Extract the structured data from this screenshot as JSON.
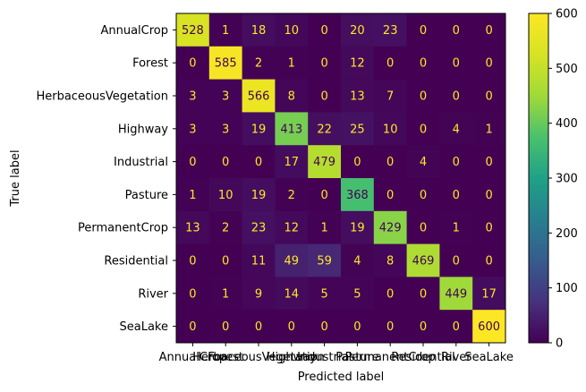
{
  "chart_data": {
    "type": "heatmap",
    "title": "",
    "xlabel": "Predicted label",
    "ylabel": "True label",
    "labels": [
      "AnnualCrop",
      "Forest",
      "HerbaceousVegetation",
      "Highway",
      "Industrial",
      "Pasture",
      "PermanentCrop",
      "Residential",
      "River",
      "SeaLake"
    ],
    "matrix": [
      [
        528,
        1,
        18,
        10,
        0,
        20,
        23,
        0,
        0,
        0
      ],
      [
        0,
        585,
        2,
        1,
        0,
        12,
        0,
        0,
        0,
        0
      ],
      [
        3,
        3,
        566,
        8,
        0,
        13,
        7,
        0,
        0,
        0
      ],
      [
        3,
        3,
        19,
        413,
        22,
        25,
        10,
        0,
        4,
        1
      ],
      [
        0,
        0,
        0,
        17,
        479,
        0,
        0,
        4,
        0,
        0
      ],
      [
        1,
        10,
        19,
        2,
        0,
        368,
        0,
        0,
        0,
        0
      ],
      [
        13,
        2,
        23,
        12,
        1,
        19,
        429,
        0,
        1,
        0
      ],
      [
        0,
        0,
        11,
        49,
        59,
        4,
        8,
        469,
        0,
        0
      ],
      [
        0,
        1,
        9,
        14,
        5,
        5,
        0,
        0,
        449,
        17
      ],
      [
        0,
        0,
        0,
        0,
        0,
        0,
        0,
        0,
        0,
        600
      ]
    ],
    "colorbar": {
      "colormap": "viridis",
      "range": [
        0,
        600
      ],
      "ticks": [
        0,
        100,
        200,
        300,
        400,
        500,
        600
      ]
    },
    "grid": false,
    "legend": "colorbar-right"
  }
}
